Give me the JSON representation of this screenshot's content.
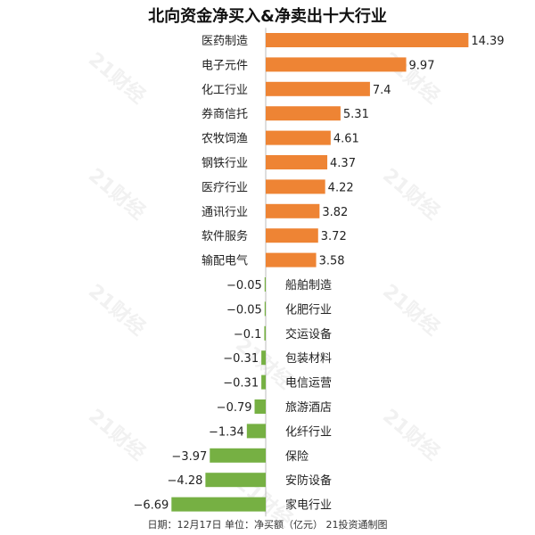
{
  "watermark": "21财经",
  "chart_data": {
    "type": "bar",
    "orientation": "horizontal",
    "title": "北向资金净买入&净卖出十大行业",
    "xlabel": "",
    "ylabel": "",
    "categories": [
      "医药制造",
      "电子元件",
      "化工行业",
      "券商信托",
      "农牧饲渔",
      "钢铁行业",
      "医疗行业",
      "通讯行业",
      "软件服务",
      "输配电气",
      "船舶制造",
      "化肥行业",
      "交运设备",
      "包装材料",
      "电信运营",
      "旅游酒店",
      "化纤行业",
      "保险",
      "安防设备",
      "家电行业"
    ],
    "values": [
      14.39,
      9.97,
      7.4,
      5.31,
      4.61,
      4.37,
      4.22,
      3.82,
      3.72,
      3.58,
      -0.05,
      -0.05,
      -0.1,
      -0.31,
      -0.31,
      -0.79,
      -1.34,
      -3.97,
      -4.28,
      -6.69
    ],
    "value_labels": [
      "14.39",
      "9.97",
      "7.4",
      "5.31",
      "4.61",
      "4.37",
      "4.22",
      "3.82",
      "3.72",
      "3.58",
      "−0.05",
      "−0.05",
      "−0.1",
      "−0.31",
      "−0.31",
      "−0.79",
      "−1.34",
      "−3.97",
      "−4.28",
      "−6.69"
    ],
    "positive_color": "#ee8434",
    "negative_color": "#76b043",
    "xlim": [
      -6.69,
      14.39
    ],
    "grid": false,
    "legend": "none"
  },
  "footer": "日期：12月17日 单位：净买额（亿元） 21投资通制图"
}
